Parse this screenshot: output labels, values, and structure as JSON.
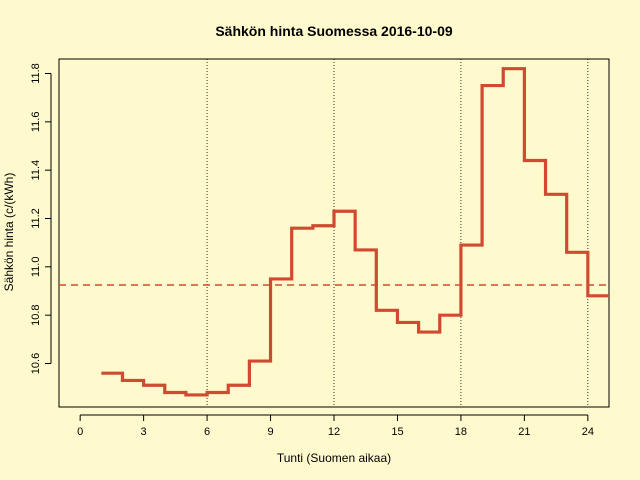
{
  "chart_data": {
    "type": "line",
    "step": true,
    "title": "Sähkön hinta Suomessa 2016-10-09",
    "xlabel": "Tunti (Suomen aikaa)",
    "ylabel": "Sähkön hinta (c/(kWh)",
    "xlim": [
      -1,
      25
    ],
    "ylim": [
      10.42,
      11.86
    ],
    "xticks": [
      0,
      3,
      6,
      9,
      12,
      15,
      18,
      21,
      24
    ],
    "yticks": [
      10.6,
      10.8,
      11.0,
      11.2,
      11.4,
      11.6,
      11.8
    ],
    "ytick_labels": [
      "10.6",
      "10.8",
      "11.0",
      "11.2",
      "11.4",
      "11.6",
      "11.8"
    ],
    "vlines": [
      6,
      12,
      18,
      24
    ],
    "grid": false,
    "series": [
      {
        "x": [
          1,
          2,
          3,
          4,
          5,
          6,
          7,
          8,
          9,
          10,
          11,
          12,
          13,
          14,
          15,
          16,
          17,
          18,
          19,
          20,
          21,
          22,
          23,
          24
        ],
        "values": [
          10.56,
          10.53,
          10.51,
          10.48,
          10.47,
          10.48,
          10.51,
          10.61,
          10.95,
          11.16,
          11.17,
          11.23,
          11.07,
          10.82,
          10.77,
          10.73,
          10.8,
          11.09,
          11.75,
          11.82,
          11.44,
          11.3,
          11.06,
          10.88
        ],
        "color": "#d04a31"
      }
    ],
    "mean_line": {
      "value": 10.925,
      "color": "#d04a31",
      "style": "dashed"
    },
    "background": "#fffacd"
  }
}
